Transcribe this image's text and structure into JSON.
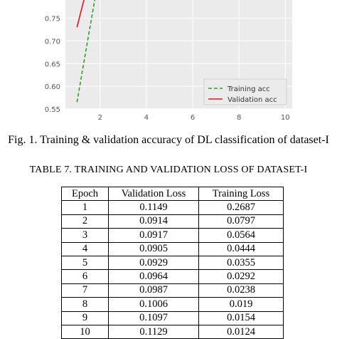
{
  "figure": {
    "chart_data": {
      "type": "line",
      "xticks": [
        "2",
        "4",
        "6",
        "8",
        "10"
      ],
      "yticks": [
        "0.55",
        "0.60",
        "0.65",
        "0.70",
        "0.75"
      ],
      "xlim": [
        0.5,
        10.3
      ],
      "ylim": [
        0.55,
        0.79
      ],
      "grid": true,
      "legend_position": "lower-right",
      "series": [
        {
          "name": "Training acc",
          "color": "#2ca02c",
          "style": "dashed",
          "x": [
            1,
            1.8
          ],
          "y": [
            0.565,
            0.8
          ]
        },
        {
          "name": "Validation acc",
          "color": "#e8141c",
          "style": "solid",
          "x": [
            1,
            1.3
          ],
          "y": [
            0.73,
            0.79
          ]
        }
      ]
    },
    "caption": "Fig. 1. Training & validation accuracy of DL classification of dataset-I"
  },
  "table": {
    "title": "TABLE 7. TRAINING AND VALIDATION LOSS OF DATASET-I",
    "headers": [
      "Epoch",
      "Validation Loss",
      "Training Loss"
    ],
    "rows": [
      [
        "1",
        "0.1149",
        "0.2687"
      ],
      [
        "2",
        "0.0914",
        "0.0797"
      ],
      [
        "3",
        "0.0917",
        "0.0564"
      ],
      [
        "4",
        "0.0905",
        "0.0444"
      ],
      [
        "5",
        "0.0929",
        "0.0355"
      ],
      [
        "6",
        "0.0964",
        "0.0292"
      ],
      [
        "7",
        "0.0987",
        "0.0238"
      ],
      [
        "8",
        "0.1006",
        "0.019"
      ],
      [
        "9",
        "0.1097",
        "0.0154"
      ],
      [
        "10",
        "0.1129",
        "0.0124"
      ]
    ]
  }
}
